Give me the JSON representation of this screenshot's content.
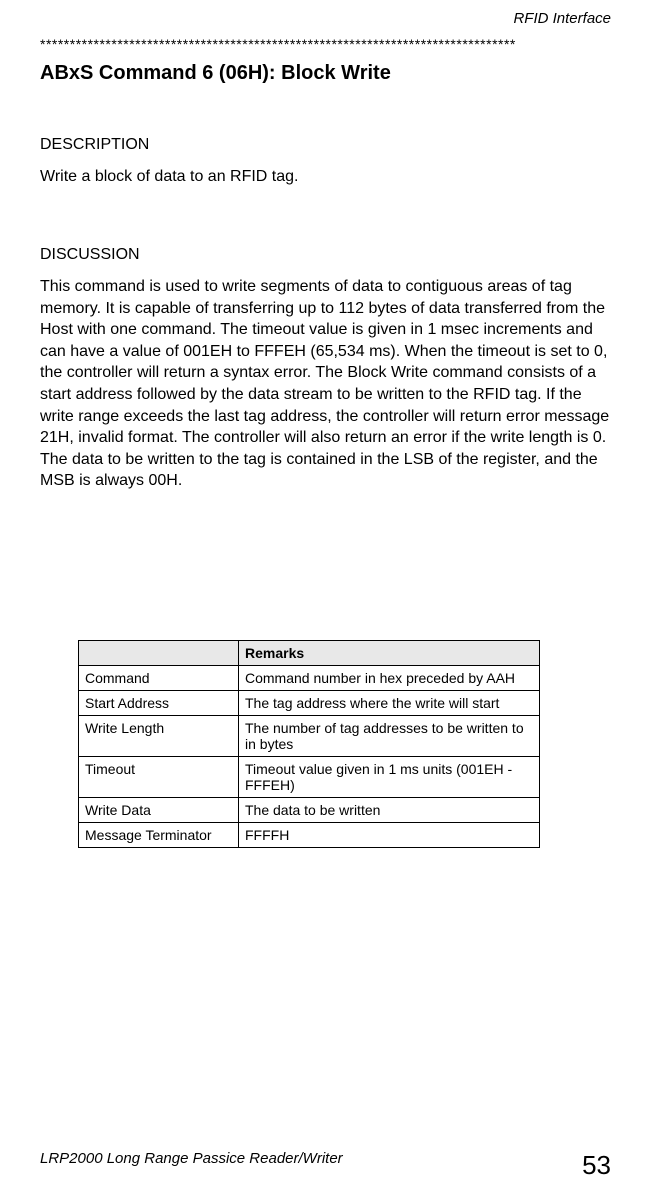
{
  "running_head": "RFID Interface",
  "star_line": "********************************************************************************",
  "cmd_title": "ABxS Command 6 (06H): Block Write",
  "description": {
    "heading": "DESCRIPTION",
    "text": "Write a block of data to an RFID tag."
  },
  "discussion": {
    "heading": "DISCUSSION",
    "text": "This command is used to write segments of data to contiguous areas of tag memory. It is capable of transferring up to 112 bytes of data transferred from the Host with one command. The timeout value is given in 1 msec increments and can have a value of 001EH to FFFEH (65,534 ms). When the timeout is set to 0, the controller will return a syntax error.  The Block Write command consists of a start address followed by the data stream to be written to the RFID tag. If the write range exceeds the last tag address, the controller will return error message 21H, invalid format. The controller will also return an error if the write length is 0.  The data to be written to the tag is contained in the LSB of the register, and the MSB is always 00H."
  },
  "table": {
    "header_blank": "",
    "header_remarks": "Remarks",
    "rows": [
      {
        "field": "Command",
        "remarks": "Command number in hex preceded by AAH"
      },
      {
        "field": "Start Address",
        "remarks": "The tag address where the write will start"
      },
      {
        "field": "Write Length",
        "remarks": "The number of tag addresses to be written to in bytes"
      },
      {
        "field": "Timeout",
        "remarks": "Timeout value given in 1 ms units (001EH - FFFEH)"
      },
      {
        "field": "Write Data",
        "remarks": "The data to be written"
      },
      {
        "field": "Message Terminator",
        "remarks": "FFFFH"
      }
    ]
  },
  "footer": {
    "title": "LRP2000 Long Range Passice Reader/Writer",
    "page": "53"
  }
}
